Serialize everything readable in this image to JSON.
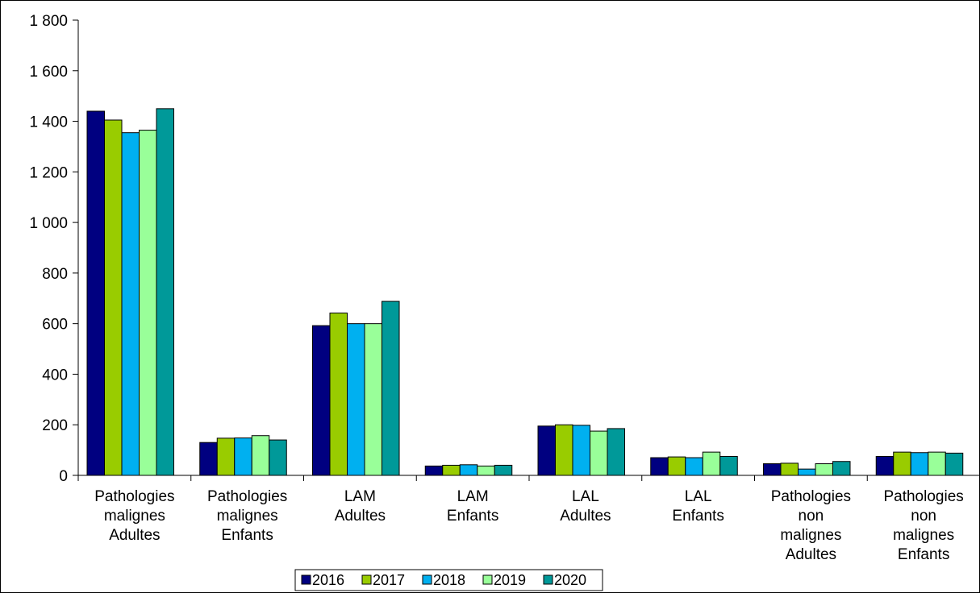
{
  "chart_data": {
    "type": "bar",
    "categories": [
      [
        "Pathologies",
        "malignes",
        "Adultes"
      ],
      [
        "Pathologies",
        "malignes",
        "Enfants"
      ],
      [
        "LAM",
        "Adultes"
      ],
      [
        "LAM",
        "Enfants"
      ],
      [
        "LAL",
        "Adultes"
      ],
      [
        "LAL",
        "Enfants"
      ],
      [
        "Pathologies",
        "non",
        "malignes",
        "Adultes"
      ],
      [
        "Pathologies",
        "non",
        "malignes",
        "Enfants"
      ]
    ],
    "series": [
      {
        "name": "2016",
        "color": "#000080",
        "values": [
          1440,
          130,
          592,
          37,
          195,
          70,
          46,
          75
        ]
      },
      {
        "name": "2017",
        "color": "#99CC00",
        "values": [
          1405,
          147,
          642,
          40,
          200,
          73,
          48,
          92
        ]
      },
      {
        "name": "2018",
        "color": "#00B0F0",
        "values": [
          1355,
          148,
          600,
          42,
          198,
          70,
          25,
          90
        ]
      },
      {
        "name": "2019",
        "color": "#99FF99",
        "values": [
          1365,
          157,
          600,
          37,
          175,
          92,
          46,
          92
        ]
      },
      {
        "name": "2020",
        "color": "#009999",
        "values": [
          1450,
          140,
          688,
          40,
          185,
          75,
          55,
          88
        ]
      }
    ],
    "ylim": [
      0,
      1800
    ],
    "yticks": [
      0,
      200,
      400,
      600,
      800,
      1000,
      1200,
      1400,
      1600,
      1800
    ],
    "ytick_labels": [
      "0",
      "200",
      "400",
      "600",
      "800",
      "1 000",
      "1 200",
      "1 400",
      "1 600",
      "1 800"
    ],
    "title": "",
    "xlabel": "",
    "ylabel": "",
    "grid": false,
    "legend_position": "bottom-center"
  }
}
